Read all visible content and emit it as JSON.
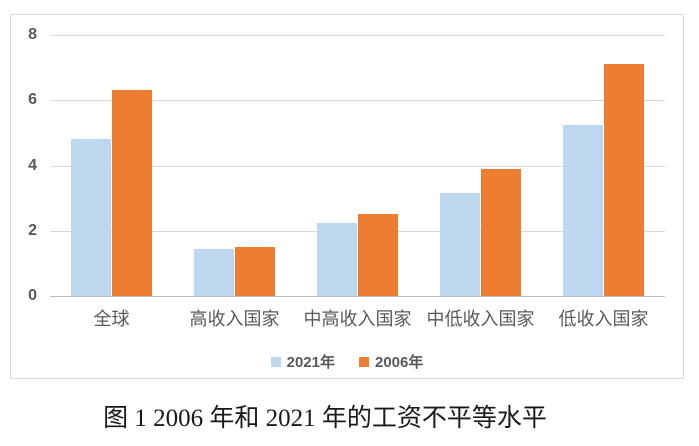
{
  "caption": "图 1 2006 年和 2021 年的工资不平等水平",
  "chart_data": {
    "type": "bar",
    "categories": [
      "全球",
      "高收入国家",
      "中高收入国家",
      "中低收入国家",
      "低收入国家"
    ],
    "series": [
      {
        "name": "2021年",
        "color": "#BDD7EE",
        "values": [
          4.8,
          1.45,
          2.25,
          3.15,
          5.25
        ]
      },
      {
        "name": "2006年",
        "color": "#ED7D31",
        "values": [
          6.3,
          1.5,
          2.5,
          3.9,
          7.1
        ]
      }
    ],
    "title": "",
    "xlabel": "",
    "ylabel": "",
    "ylim": [
      0,
      8
    ],
    "yticks": [
      0,
      2,
      4,
      6,
      8
    ],
    "grid": true,
    "legend_position": "bottom",
    "style": {
      "grid_color": "#d9d9d9",
      "axis_line_color": "#bfbfbf",
      "tick_label_color": "#595959",
      "category_label_color": "#595959",
      "legend_text_color": "#595959",
      "frame_border_color": "#d9d9d9",
      "caption_color": "#1a1a1a"
    }
  }
}
